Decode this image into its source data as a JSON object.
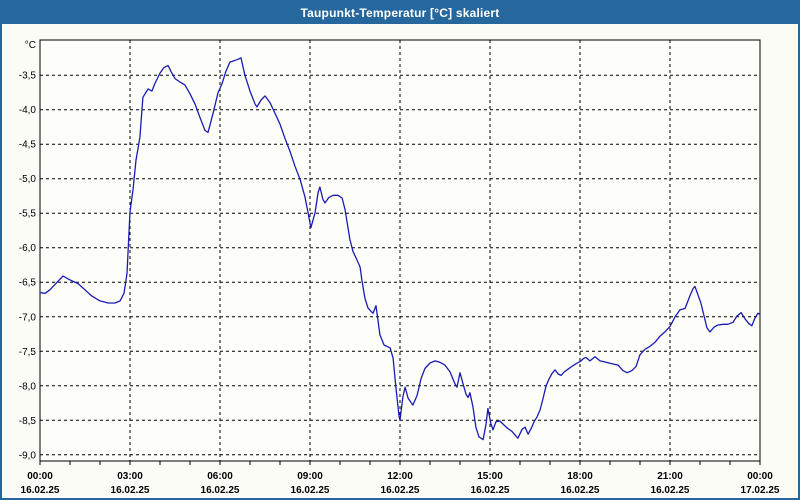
{
  "window": {
    "title": "Taupunkt-Temperatur [°C] skaliert"
  },
  "colors": {
    "titlebar": "#26689D",
    "window_border": "#26689D",
    "background": "#FCFCF6",
    "plot_background": "#FDFDFA",
    "line": "#1B1BB3",
    "grid": "#000000",
    "frame": "#000000",
    "title_text": "#FFFFFF",
    "label_text": "#000000"
  },
  "chart_data": {
    "type": "line",
    "title": "Taupunkt-Temperatur [°C] skaliert",
    "ylabel_unit": "°C",
    "grid": "dashed",
    "legend": "none",
    "xlim_hours": [
      0,
      24
    ],
    "ylim": [
      -9.09,
      -2.99
    ],
    "x_ticks": [
      {
        "t": 0,
        "time": "00:00",
        "date": "16.02.25"
      },
      {
        "t": 3,
        "time": "03:00",
        "date": "16.02.25"
      },
      {
        "t": 6,
        "time": "06:00",
        "date": "16.02.25"
      },
      {
        "t": 9,
        "time": "09:00",
        "date": "16.02.25"
      },
      {
        "t": 12,
        "time": "12:00",
        "date": "16.02.25"
      },
      {
        "t": 15,
        "time": "15:00",
        "date": "16.02.25"
      },
      {
        "t": 18,
        "time": "18:00",
        "date": "16.02.25"
      },
      {
        "t": 21,
        "time": "21:00",
        "date": "16.02.25"
      },
      {
        "t": 24,
        "time": "00:00",
        "date": "17.02.25"
      }
    ],
    "y_ticks": [
      {
        "v": -3.5,
        "label": "-3,5"
      },
      {
        "v": -4.0,
        "label": "-4,0"
      },
      {
        "v": -4.5,
        "label": "-4,5"
      },
      {
        "v": -5.0,
        "label": "-5,0"
      },
      {
        "v": -5.5,
        "label": "-5,5"
      },
      {
        "v": -6.0,
        "label": "-6,0"
      },
      {
        "v": -6.5,
        "label": "-6,5"
      },
      {
        "v": -7.0,
        "label": "-7,0"
      },
      {
        "v": -7.5,
        "label": "-7,5"
      },
      {
        "v": -8.0,
        "label": "-8,0"
      },
      {
        "v": -8.5,
        "label": "-8,5"
      },
      {
        "v": -9.0,
        "label": "-9,0"
      }
    ],
    "series": [
      {
        "name": "Taupunkt-Temperatur",
        "points": [
          [
            0.0,
            -6.65
          ],
          [
            0.17,
            -6.66
          ],
          [
            0.33,
            -6.61
          ],
          [
            0.57,
            -6.5
          ],
          [
            0.77,
            -6.41
          ],
          [
            0.93,
            -6.45
          ],
          [
            1.07,
            -6.48
          ],
          [
            1.27,
            -6.52
          ],
          [
            1.5,
            -6.61
          ],
          [
            1.73,
            -6.7
          ],
          [
            2.0,
            -6.77
          ],
          [
            2.27,
            -6.8
          ],
          [
            2.5,
            -6.8
          ],
          [
            2.67,
            -6.77
          ],
          [
            2.8,
            -6.66
          ],
          [
            2.9,
            -6.37
          ],
          [
            3.0,
            -5.48
          ],
          [
            3.1,
            -5.16
          ],
          [
            3.2,
            -4.73
          ],
          [
            3.33,
            -4.4
          ],
          [
            3.43,
            -3.82
          ],
          [
            3.6,
            -3.7
          ],
          [
            3.73,
            -3.73
          ],
          [
            3.83,
            -3.62
          ],
          [
            4.0,
            -3.47
          ],
          [
            4.13,
            -3.39
          ],
          [
            4.27,
            -3.36
          ],
          [
            4.37,
            -3.45
          ],
          [
            4.5,
            -3.55
          ],
          [
            4.67,
            -3.6
          ],
          [
            4.83,
            -3.64
          ],
          [
            5.0,
            -3.77
          ],
          [
            5.17,
            -3.92
          ],
          [
            5.33,
            -4.11
          ],
          [
            5.5,
            -4.3
          ],
          [
            5.6,
            -4.33
          ],
          [
            5.77,
            -4.05
          ],
          [
            5.93,
            -3.76
          ],
          [
            6.07,
            -3.62
          ],
          [
            6.2,
            -3.44
          ],
          [
            6.33,
            -3.31
          ],
          [
            6.47,
            -3.29
          ],
          [
            6.6,
            -3.27
          ],
          [
            6.7,
            -3.25
          ],
          [
            6.83,
            -3.5
          ],
          [
            7.0,
            -3.73
          ],
          [
            7.17,
            -3.92
          ],
          [
            7.23,
            -3.96
          ],
          [
            7.37,
            -3.86
          ],
          [
            7.5,
            -3.8
          ],
          [
            7.67,
            -3.9
          ],
          [
            7.8,
            -4.02
          ],
          [
            8.0,
            -4.21
          ],
          [
            8.17,
            -4.42
          ],
          [
            8.33,
            -4.6
          ],
          [
            8.5,
            -4.82
          ],
          [
            8.67,
            -5.01
          ],
          [
            8.83,
            -5.26
          ],
          [
            8.93,
            -5.48
          ],
          [
            9.03,
            -5.71
          ],
          [
            9.17,
            -5.49
          ],
          [
            9.27,
            -5.2
          ],
          [
            9.33,
            -5.12
          ],
          [
            9.43,
            -5.3
          ],
          [
            9.5,
            -5.35
          ],
          [
            9.63,
            -5.27
          ],
          [
            9.77,
            -5.24
          ],
          [
            9.93,
            -5.24
          ],
          [
            10.07,
            -5.28
          ],
          [
            10.17,
            -5.45
          ],
          [
            10.33,
            -5.88
          ],
          [
            10.43,
            -6.05
          ],
          [
            10.57,
            -6.18
          ],
          [
            10.67,
            -6.28
          ],
          [
            10.73,
            -6.47
          ],
          [
            10.83,
            -6.73
          ],
          [
            10.93,
            -6.87
          ],
          [
            11.03,
            -6.92
          ],
          [
            11.1,
            -6.95
          ],
          [
            11.2,
            -6.84
          ],
          [
            11.33,
            -7.26
          ],
          [
            11.47,
            -7.41
          ],
          [
            11.67,
            -7.45
          ],
          [
            11.77,
            -7.6
          ],
          [
            11.87,
            -8.05
          ],
          [
            11.97,
            -8.45
          ],
          [
            12.0,
            -8.5
          ],
          [
            12.1,
            -8.15
          ],
          [
            12.17,
            -8.02
          ],
          [
            12.27,
            -8.18
          ],
          [
            12.43,
            -8.28
          ],
          [
            12.57,
            -8.14
          ],
          [
            12.7,
            -7.9
          ],
          [
            12.83,
            -7.75
          ],
          [
            13.0,
            -7.67
          ],
          [
            13.17,
            -7.64
          ],
          [
            13.33,
            -7.66
          ],
          [
            13.5,
            -7.7
          ],
          [
            13.67,
            -7.8
          ],
          [
            13.83,
            -7.97
          ],
          [
            13.9,
            -8.02
          ],
          [
            14.0,
            -7.81
          ],
          [
            14.1,
            -7.97
          ],
          [
            14.2,
            -8.12
          ],
          [
            14.27,
            -8.17
          ],
          [
            14.33,
            -8.1
          ],
          [
            14.43,
            -8.3
          ],
          [
            14.53,
            -8.6
          ],
          [
            14.63,
            -8.74
          ],
          [
            14.77,
            -8.78
          ],
          [
            14.87,
            -8.55
          ],
          [
            14.93,
            -8.33
          ],
          [
            15.03,
            -8.55
          ],
          [
            15.1,
            -8.64
          ],
          [
            15.2,
            -8.52
          ],
          [
            15.33,
            -8.51
          ],
          [
            15.47,
            -8.57
          ],
          [
            15.6,
            -8.62
          ],
          [
            15.73,
            -8.66
          ],
          [
            15.87,
            -8.73
          ],
          [
            15.93,
            -8.76
          ],
          [
            16.07,
            -8.63
          ],
          [
            16.17,
            -8.6
          ],
          [
            16.27,
            -8.7
          ],
          [
            16.37,
            -8.62
          ],
          [
            16.47,
            -8.52
          ],
          [
            16.57,
            -8.45
          ],
          [
            16.67,
            -8.35
          ],
          [
            16.77,
            -8.18
          ],
          [
            16.87,
            -8.0
          ],
          [
            16.97,
            -7.9
          ],
          [
            17.07,
            -7.82
          ],
          [
            17.17,
            -7.77
          ],
          [
            17.27,
            -7.83
          ],
          [
            17.37,
            -7.85
          ],
          [
            17.47,
            -7.8
          ],
          [
            17.6,
            -7.76
          ],
          [
            17.73,
            -7.72
          ],
          [
            17.87,
            -7.68
          ],
          [
            18.0,
            -7.65
          ],
          [
            18.13,
            -7.6
          ],
          [
            18.2,
            -7.59
          ],
          [
            18.33,
            -7.64
          ],
          [
            18.5,
            -7.58
          ],
          [
            18.67,
            -7.64
          ],
          [
            18.87,
            -7.66
          ],
          [
            19.07,
            -7.68
          ],
          [
            19.27,
            -7.7
          ],
          [
            19.43,
            -7.78
          ],
          [
            19.57,
            -7.81
          ],
          [
            19.73,
            -7.78
          ],
          [
            19.87,
            -7.72
          ],
          [
            20.0,
            -7.55
          ],
          [
            20.17,
            -7.47
          ],
          [
            20.33,
            -7.43
          ],
          [
            20.5,
            -7.37
          ],
          [
            20.67,
            -7.28
          ],
          [
            20.83,
            -7.22
          ],
          [
            21.0,
            -7.14
          ],
          [
            21.17,
            -7.0
          ],
          [
            21.33,
            -6.9
          ],
          [
            21.5,
            -6.88
          ],
          [
            21.67,
            -6.69
          ],
          [
            21.77,
            -6.59
          ],
          [
            21.83,
            -6.56
          ],
          [
            21.93,
            -6.68
          ],
          [
            22.03,
            -6.8
          ],
          [
            22.13,
            -6.98
          ],
          [
            22.23,
            -7.16
          ],
          [
            22.33,
            -7.22
          ],
          [
            22.47,
            -7.15
          ],
          [
            22.6,
            -7.12
          ],
          [
            22.77,
            -7.11
          ],
          [
            22.93,
            -7.11
          ],
          [
            23.1,
            -7.08
          ],
          [
            23.23,
            -6.99
          ],
          [
            23.37,
            -6.94
          ],
          [
            23.5,
            -7.03
          ],
          [
            23.63,
            -7.1
          ],
          [
            23.73,
            -7.13
          ],
          [
            23.83,
            -7.02
          ],
          [
            23.93,
            -6.95
          ],
          [
            24.0,
            -6.96
          ]
        ]
      }
    ]
  }
}
